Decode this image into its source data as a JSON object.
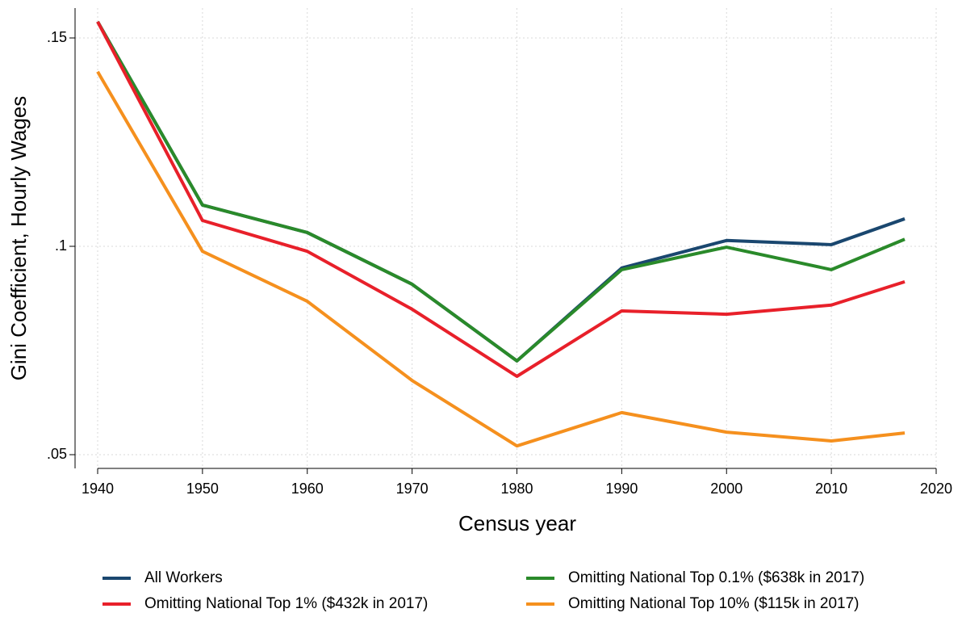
{
  "chart_data": {
    "type": "line",
    "x_label": "Census year",
    "y_label": "Gini Coefficient, Hourly Wages",
    "x": [
      1940,
      1950,
      1960,
      1970,
      1980,
      1990,
      2000,
      2010,
      2017
    ],
    "series": [
      {
        "name": "All Workers",
        "color": "#1a476f",
        "values": [
          0.1539,
          0.1099,
          0.1033,
          0.0909,
          0.0725,
          0.0948,
          0.1014,
          0.1004,
          0.1066
        ]
      },
      {
        "name": "Omitting National Top 0.1% ($638k in 2017)",
        "color": "#2a8a2a",
        "values": [
          0.1539,
          0.1099,
          0.1033,
          0.0909,
          0.0725,
          0.0944,
          0.0998,
          0.0944,
          0.1017
        ]
      },
      {
        "name": "Omitting National Top 1% ($432k in 2017)",
        "color": "#e8202a",
        "values": [
          0.1539,
          0.1062,
          0.0988,
          0.0849,
          0.0688,
          0.0845,
          0.0837,
          0.0859,
          0.0915
        ]
      },
      {
        "name": "Omitting National Top 10% ($115k in 2017)",
        "color": "#f5901e",
        "values": [
          0.1419,
          0.0988,
          0.0868,
          0.0678,
          0.0521,
          0.0601,
          0.0554,
          0.0533,
          0.0552
        ]
      }
    ],
    "xlim": [
      1940,
      2020
    ],
    "xticks": [
      1940,
      1950,
      1960,
      1970,
      1980,
      1990,
      2000,
      2010,
      2020
    ],
    "ylim": [
      0.05,
      0.15
    ],
    "yticks": [
      {
        "value": 0.05,
        "label": ".05"
      },
      {
        "value": 0.1,
        "label": ".1"
      },
      {
        "value": 0.15,
        "label": ".15"
      }
    ],
    "grid": true,
    "legend": "bottom"
  }
}
